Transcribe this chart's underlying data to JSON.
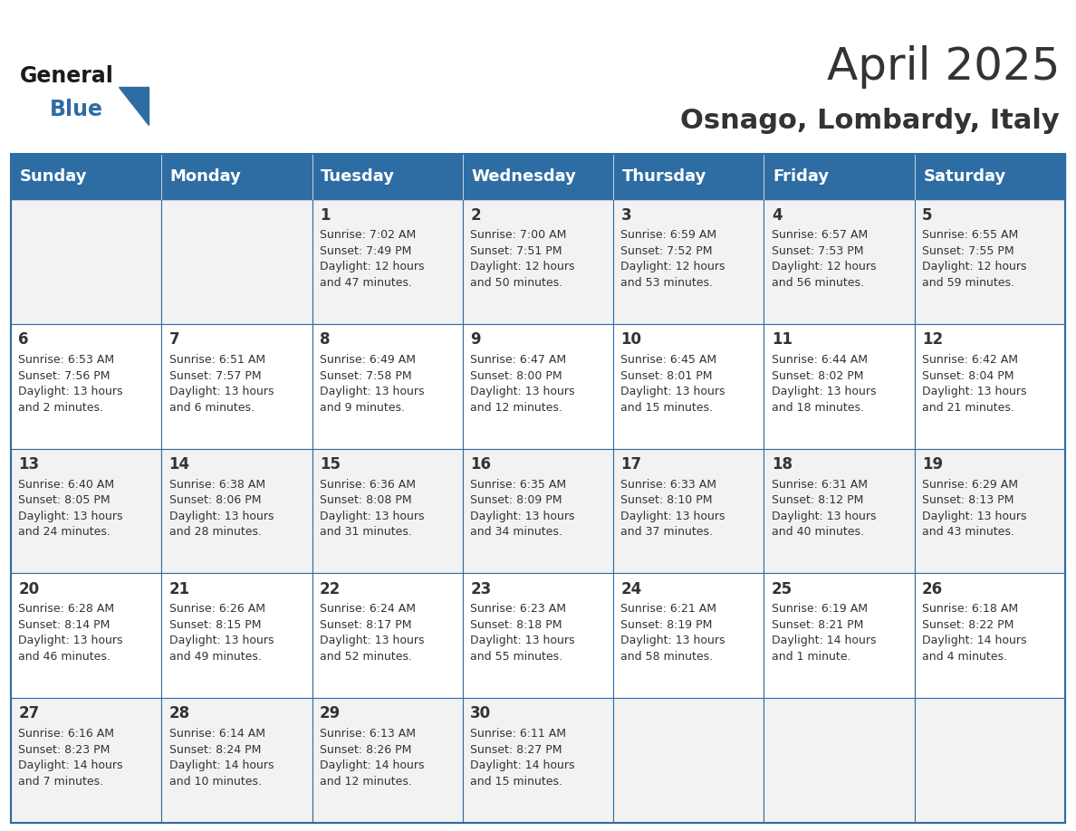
{
  "title": "April 2025",
  "subtitle": "Osnago, Lombardy, Italy",
  "header_bg": "#2E6DA4",
  "header_text_color": "#FFFFFF",
  "cell_bg_light": "#F2F2F2",
  "cell_bg_white": "#FFFFFF",
  "border_color": "#2E6DA4",
  "text_color": "#333333",
  "days_of_week": [
    "Sunday",
    "Monday",
    "Tuesday",
    "Wednesday",
    "Thursday",
    "Friday",
    "Saturday"
  ],
  "weeks": [
    [
      {
        "day": "",
        "info": ""
      },
      {
        "day": "",
        "info": ""
      },
      {
        "day": "1",
        "info": "Sunrise: 7:02 AM\nSunset: 7:49 PM\nDaylight: 12 hours\nand 47 minutes."
      },
      {
        "day": "2",
        "info": "Sunrise: 7:00 AM\nSunset: 7:51 PM\nDaylight: 12 hours\nand 50 minutes."
      },
      {
        "day": "3",
        "info": "Sunrise: 6:59 AM\nSunset: 7:52 PM\nDaylight: 12 hours\nand 53 minutes."
      },
      {
        "day": "4",
        "info": "Sunrise: 6:57 AM\nSunset: 7:53 PM\nDaylight: 12 hours\nand 56 minutes."
      },
      {
        "day": "5",
        "info": "Sunrise: 6:55 AM\nSunset: 7:55 PM\nDaylight: 12 hours\nand 59 minutes."
      }
    ],
    [
      {
        "day": "6",
        "info": "Sunrise: 6:53 AM\nSunset: 7:56 PM\nDaylight: 13 hours\nand 2 minutes."
      },
      {
        "day": "7",
        "info": "Sunrise: 6:51 AM\nSunset: 7:57 PM\nDaylight: 13 hours\nand 6 minutes."
      },
      {
        "day": "8",
        "info": "Sunrise: 6:49 AM\nSunset: 7:58 PM\nDaylight: 13 hours\nand 9 minutes."
      },
      {
        "day": "9",
        "info": "Sunrise: 6:47 AM\nSunset: 8:00 PM\nDaylight: 13 hours\nand 12 minutes."
      },
      {
        "day": "10",
        "info": "Sunrise: 6:45 AM\nSunset: 8:01 PM\nDaylight: 13 hours\nand 15 minutes."
      },
      {
        "day": "11",
        "info": "Sunrise: 6:44 AM\nSunset: 8:02 PM\nDaylight: 13 hours\nand 18 minutes."
      },
      {
        "day": "12",
        "info": "Sunrise: 6:42 AM\nSunset: 8:04 PM\nDaylight: 13 hours\nand 21 minutes."
      }
    ],
    [
      {
        "day": "13",
        "info": "Sunrise: 6:40 AM\nSunset: 8:05 PM\nDaylight: 13 hours\nand 24 minutes."
      },
      {
        "day": "14",
        "info": "Sunrise: 6:38 AM\nSunset: 8:06 PM\nDaylight: 13 hours\nand 28 minutes."
      },
      {
        "day": "15",
        "info": "Sunrise: 6:36 AM\nSunset: 8:08 PM\nDaylight: 13 hours\nand 31 minutes."
      },
      {
        "day": "16",
        "info": "Sunrise: 6:35 AM\nSunset: 8:09 PM\nDaylight: 13 hours\nand 34 minutes."
      },
      {
        "day": "17",
        "info": "Sunrise: 6:33 AM\nSunset: 8:10 PM\nDaylight: 13 hours\nand 37 minutes."
      },
      {
        "day": "18",
        "info": "Sunrise: 6:31 AM\nSunset: 8:12 PM\nDaylight: 13 hours\nand 40 minutes."
      },
      {
        "day": "19",
        "info": "Sunrise: 6:29 AM\nSunset: 8:13 PM\nDaylight: 13 hours\nand 43 minutes."
      }
    ],
    [
      {
        "day": "20",
        "info": "Sunrise: 6:28 AM\nSunset: 8:14 PM\nDaylight: 13 hours\nand 46 minutes."
      },
      {
        "day": "21",
        "info": "Sunrise: 6:26 AM\nSunset: 8:15 PM\nDaylight: 13 hours\nand 49 minutes."
      },
      {
        "day": "22",
        "info": "Sunrise: 6:24 AM\nSunset: 8:17 PM\nDaylight: 13 hours\nand 52 minutes."
      },
      {
        "day": "23",
        "info": "Sunrise: 6:23 AM\nSunset: 8:18 PM\nDaylight: 13 hours\nand 55 minutes."
      },
      {
        "day": "24",
        "info": "Sunrise: 6:21 AM\nSunset: 8:19 PM\nDaylight: 13 hours\nand 58 minutes."
      },
      {
        "day": "25",
        "info": "Sunrise: 6:19 AM\nSunset: 8:21 PM\nDaylight: 14 hours\nand 1 minute."
      },
      {
        "day": "26",
        "info": "Sunrise: 6:18 AM\nSunset: 8:22 PM\nDaylight: 14 hours\nand 4 minutes."
      }
    ],
    [
      {
        "day": "27",
        "info": "Sunrise: 6:16 AM\nSunset: 8:23 PM\nDaylight: 14 hours\nand 7 minutes."
      },
      {
        "day": "28",
        "info": "Sunrise: 6:14 AM\nSunset: 8:24 PM\nDaylight: 14 hours\nand 10 minutes."
      },
      {
        "day": "29",
        "info": "Sunrise: 6:13 AM\nSunset: 8:26 PM\nDaylight: 14 hours\nand 12 minutes."
      },
      {
        "day": "30",
        "info": "Sunrise: 6:11 AM\nSunset: 8:27 PM\nDaylight: 14 hours\nand 15 minutes."
      },
      {
        "day": "",
        "info": ""
      },
      {
        "day": "",
        "info": ""
      },
      {
        "day": "",
        "info": ""
      }
    ]
  ],
  "logo_general_color": "#1a1a1a",
  "logo_blue_color": "#2E6DA4",
  "title_fontsize": 36,
  "subtitle_fontsize": 22,
  "header_fontsize": 13,
  "day_num_fontsize": 12,
  "info_fontsize": 9
}
